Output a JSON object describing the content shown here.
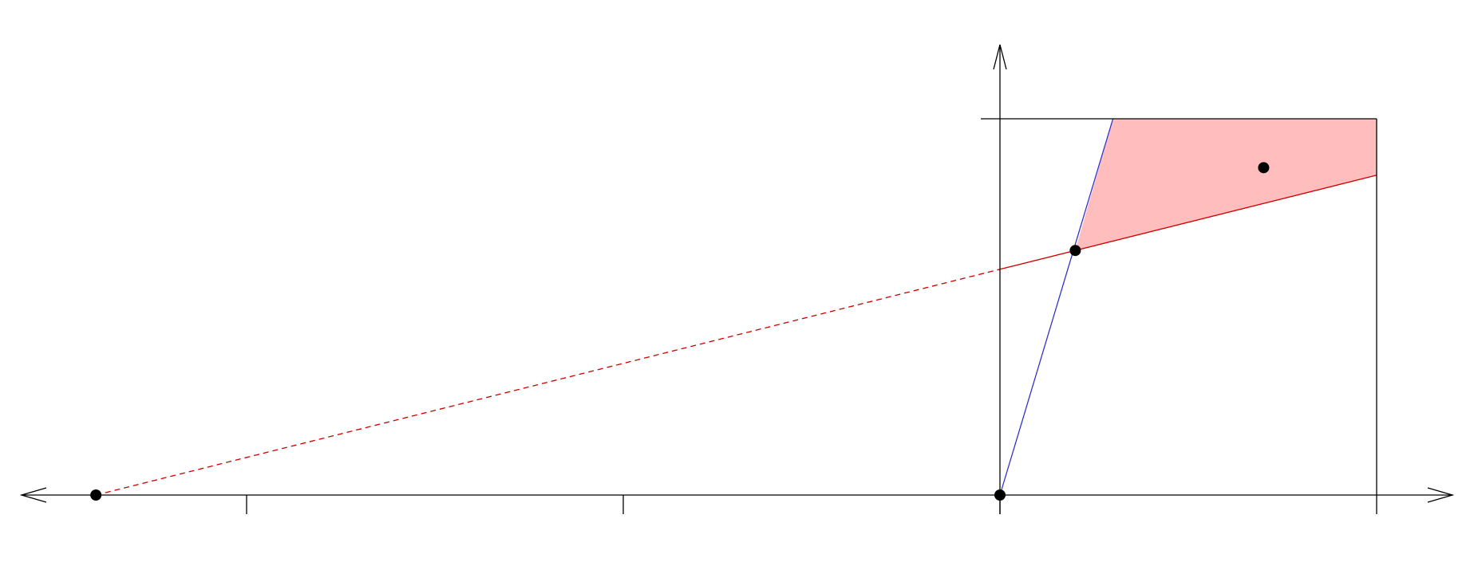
{
  "chart_data": {
    "type": "diagram",
    "colors": {
      "axis": "#000000",
      "blue_line": "#3333cc",
      "red_line": "#cc0000",
      "region_fill": "#ffbdbd",
      "point": "#000000"
    },
    "x_range": [
      -2.4,
      1.2
    ],
    "y_range": [
      0.0,
      1.0
    ],
    "x_ticks": [
      -2.0,
      -1.0,
      0.0,
      1.0
    ],
    "y_ticks": [
      1.0
    ],
    "blue_line": {
      "from": [
        0.0,
        0.0
      ],
      "to": [
        0.3,
        1.0
      ]
    },
    "red_line": {
      "solid_from": [
        0.0,
        0.6
      ],
      "solid_to": [
        1.0,
        0.85
      ],
      "dashed_from": [
        -2.4,
        0.0
      ],
      "dashed_to": [
        0.0,
        0.6
      ]
    },
    "shaded_region": [
      [
        0.2,
        0.65
      ],
      [
        0.3,
        1.0
      ],
      [
        1.0,
        1.0
      ],
      [
        1.0,
        0.85
      ]
    ],
    "points": [
      {
        "name": "point-origin",
        "x": 0.0,
        "y": 0.0
      },
      {
        "name": "point-x-intercept",
        "x": -2.4,
        "y": 0.0
      },
      {
        "name": "point-intersection",
        "x": 0.2,
        "y": 0.65
      },
      {
        "name": "point-in-region",
        "x": 0.7,
        "y": 0.87
      }
    ]
  }
}
